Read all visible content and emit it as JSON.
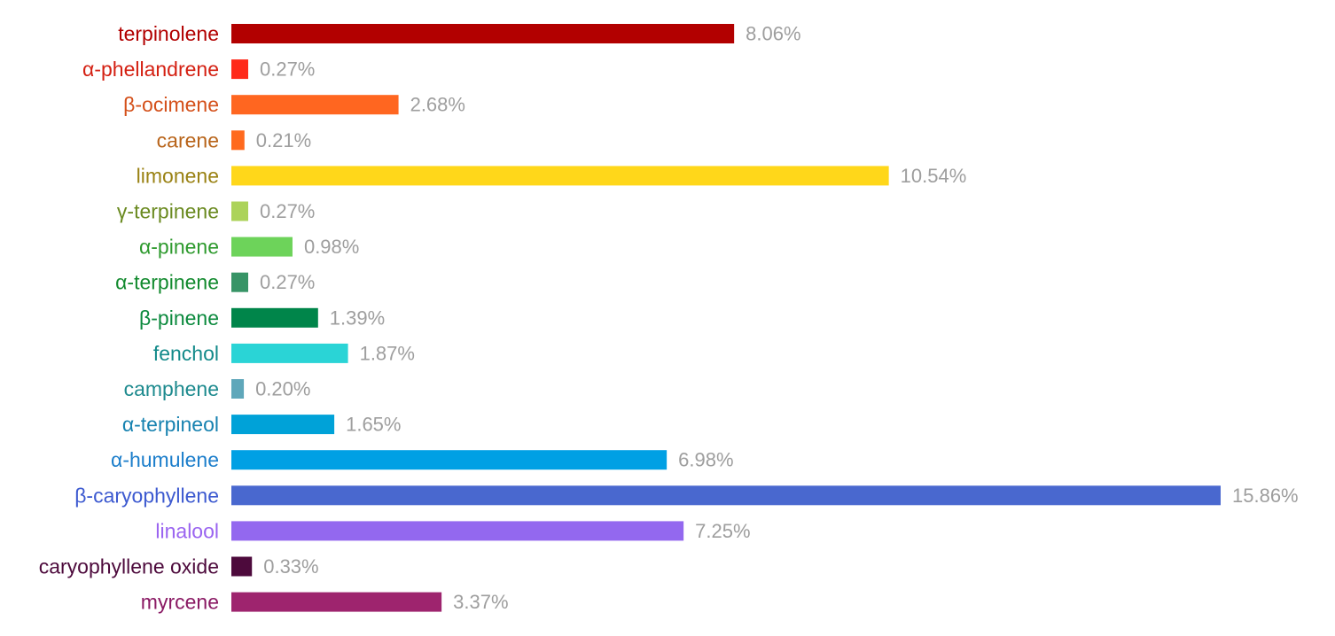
{
  "chart_data": {
    "type": "bar",
    "orientation": "horizontal",
    "title": "",
    "xlabel": "",
    "ylabel": "",
    "grid": false,
    "legend": "none",
    "value_suffix": "%",
    "categories": [
      "terpinolene",
      "α-phellandrene",
      "β-ocimene",
      "carene",
      "limonene",
      "γ-terpinene",
      "α-pinene",
      "α-terpinene",
      "β-pinene",
      "fenchol",
      "camphene",
      "α-terpineol",
      "α-humulene",
      "β-caryophyllene",
      "linalool",
      "caryophyllene oxide",
      "myrcene"
    ],
    "values": [
      8.06,
      0.27,
      2.68,
      0.21,
      10.54,
      0.27,
      0.98,
      0.27,
      1.39,
      1.87,
      0.2,
      1.65,
      6.98,
      15.86,
      7.25,
      0.33,
      3.37
    ],
    "value_labels": [
      "8.06%",
      "0.27%",
      "2.68%",
      "0.21%",
      "10.54%",
      "0.27%",
      "0.98%",
      "0.27%",
      "1.39%",
      "1.87%",
      "0.20%",
      "1.65%",
      "6.98%",
      "15.86%",
      "7.25%",
      "0.33%",
      "3.37%"
    ],
    "bar_colors": [
      "#b20000",
      "#ff2a1a",
      "#ff6620",
      "#ff6a1e",
      "#ffd71a",
      "#acd35a",
      "#6dd35a",
      "#379466",
      "#00854a",
      "#2ad4d6",
      "#5fa7ba",
      "#00a2d8",
      "#00a0e4",
      "#4968cf",
      "#9368ef",
      "#4d0a3c",
      "#9e246e"
    ],
    "label_colors": [
      "#b20000",
      "#d42012",
      "#d4501a",
      "#b8641a",
      "#9a8214",
      "#6a8a20",
      "#2e9a2e",
      "#128a2e",
      "#0c8a3e",
      "#138a8a",
      "#1d8a8e",
      "#1782b0",
      "#1c7ecb",
      "#3d5ad0",
      "#9a64f0",
      "#4d0a3c",
      "#8a1a64"
    ],
    "label_color": "#9e9e9e",
    "xlim": [
      0,
      15.86
    ]
  }
}
